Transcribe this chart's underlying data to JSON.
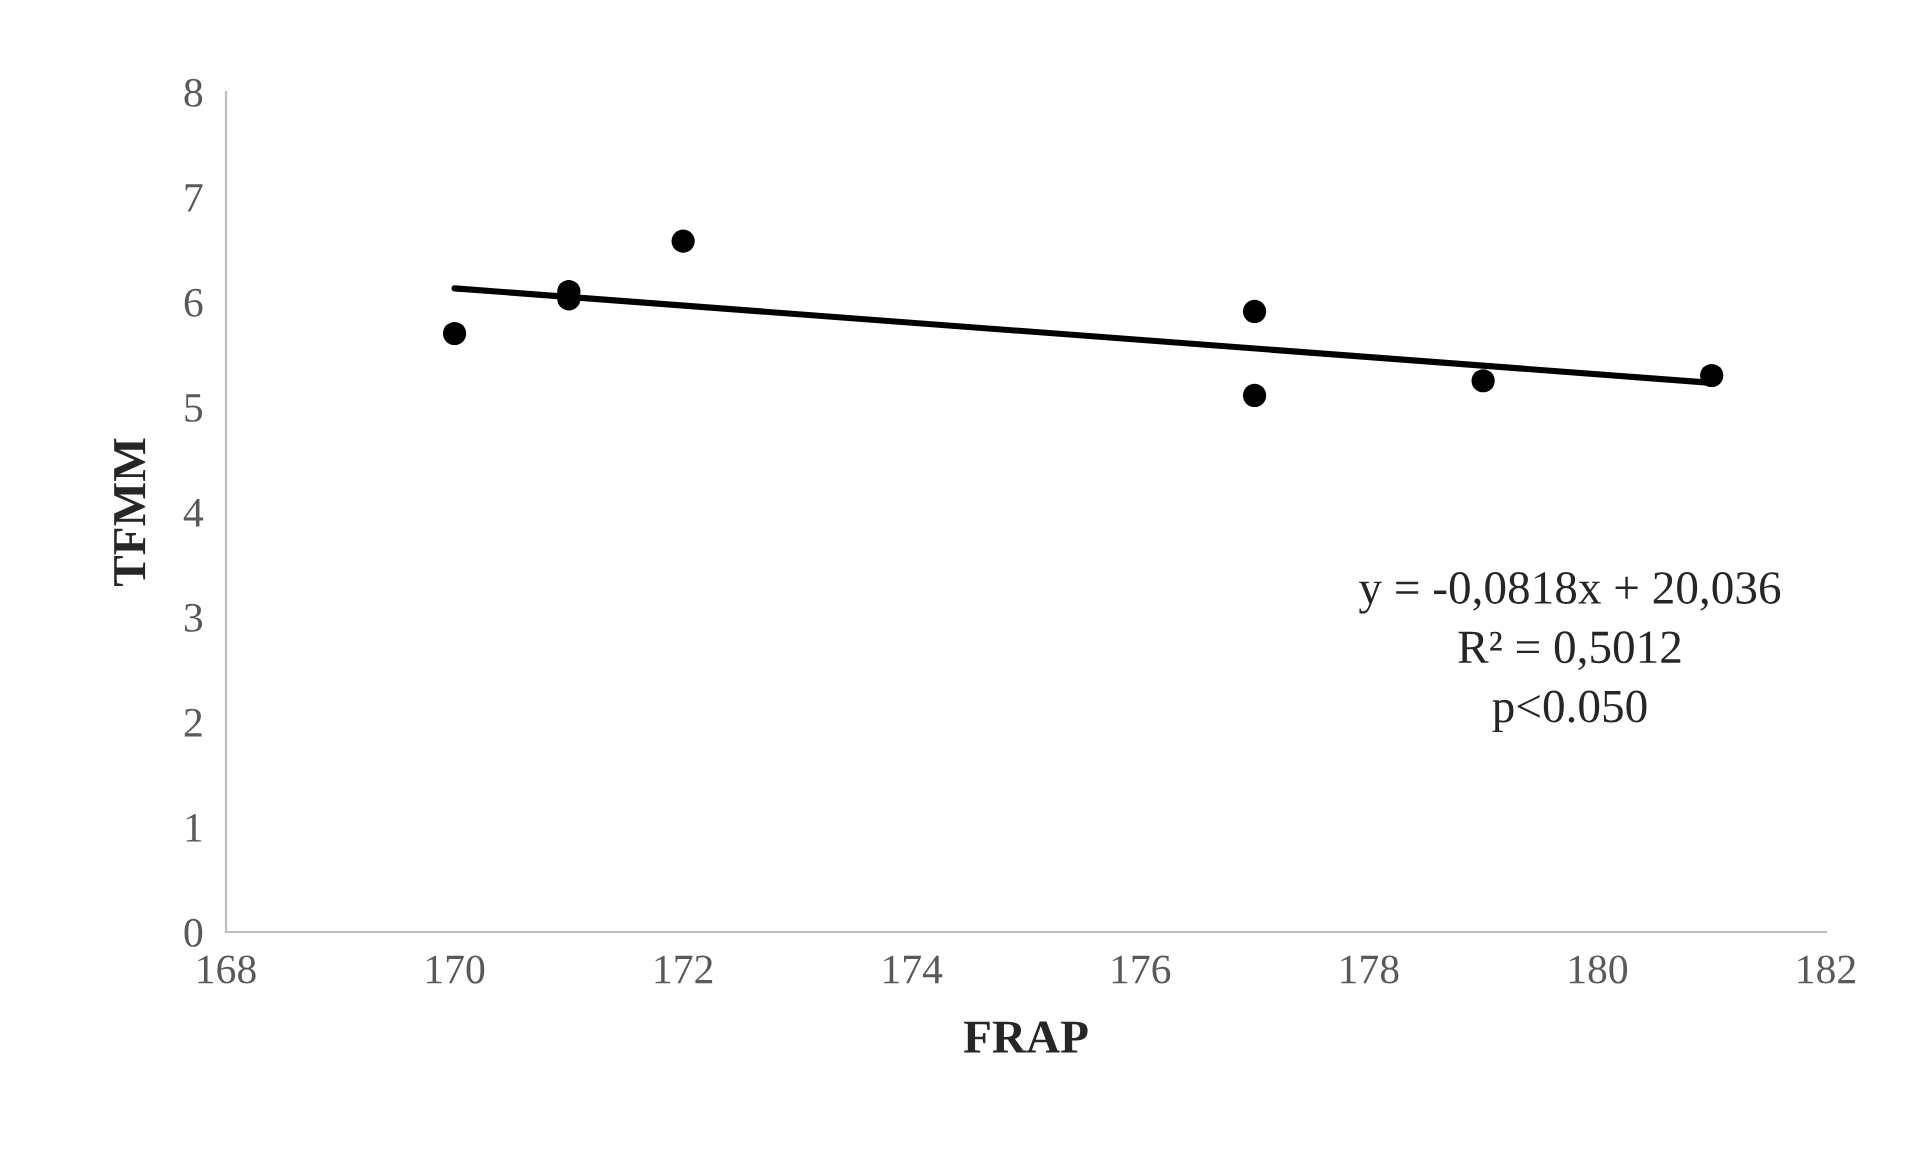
{
  "chart_data": {
    "type": "scatter",
    "xlabel": "FRAP",
    "ylabel": "TFMM",
    "xlim": [
      168,
      182
    ],
    "xticks": [
      168,
      170,
      172,
      174,
      176,
      178,
      180,
      182
    ],
    "ylim": [
      0,
      8
    ],
    "yticks": [
      0,
      1,
      2,
      3,
      4,
      5,
      6,
      7,
      8
    ],
    "grid": false,
    "legend": false,
    "series": [
      {
        "type": "scatter",
        "marker": "circle",
        "color": "#000000",
        "x": [
          170,
          171,
          171,
          172,
          177,
          177,
          179,
          181
        ],
        "values": [
          5.7,
          6.1,
          6.03,
          6.58,
          5.91,
          5.11,
          5.25,
          5.3
        ]
      },
      {
        "type": "line",
        "color": "#000000",
        "line_style": "solid",
        "x": [
          170,
          181
        ],
        "values": [
          6.13,
          5.23
        ]
      }
    ],
    "annotations": [
      "y = -0,0818x + 20,036\nR² = 0,5012\np<0.050"
    ]
  }
}
